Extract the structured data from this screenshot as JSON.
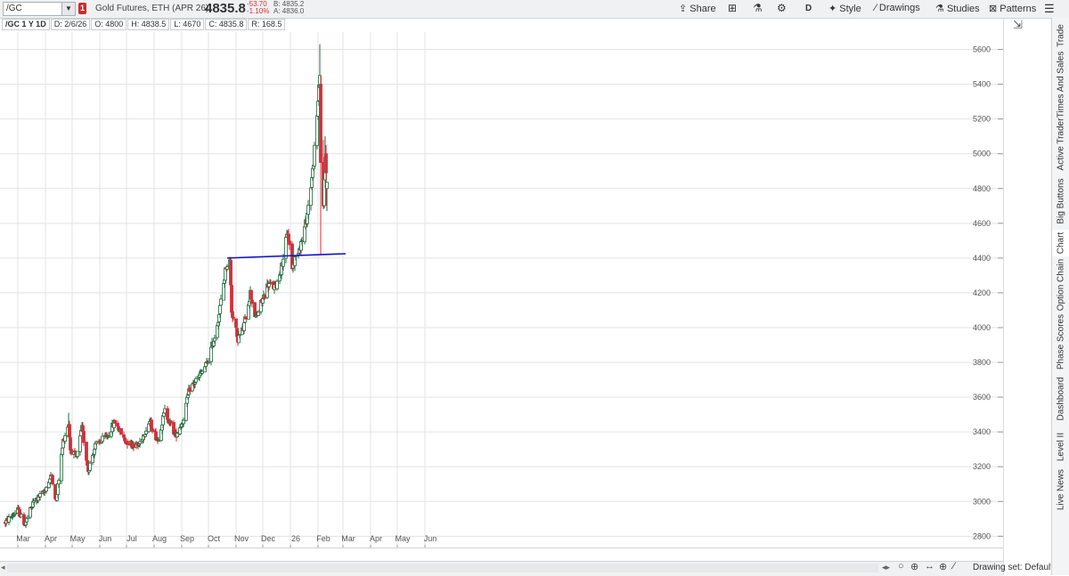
{
  "toolbar": {
    "symbol": "/GC",
    "flag_count": "1",
    "description": "Gold Futures, ETH (APR 26)",
    "last_price": "4835.8",
    "change": "-53.70",
    "change_pct": "-1.10%",
    "bid": "B: 4835.2",
    "ask": "A: 4836.0",
    "share_label": "Share",
    "aggregation": "D",
    "style_label": "Style",
    "drawings_label": "Drawings",
    "studies_label": "Studies",
    "patterns_label": "Patterns"
  },
  "infobar": {
    "title": "/GC 1 Y 1D",
    "date": "D: 2/6/26",
    "open": "O: 4800",
    "high": "H: 4838.5",
    "low": "L: 4670",
    "close": "C: 4835.8",
    "range": "R: 168.5"
  },
  "sidebar_tabs": [
    "Trade",
    "Times And Sales",
    "Active Trader",
    "Big Buttons",
    "Chart",
    "Option Chain",
    "Phase Scores",
    "Dashboard",
    "Level II",
    "Live News"
  ],
  "active_sidebar_tab": "Chart",
  "bottom": {
    "drawing_set": "Drawing set: Default"
  },
  "colors": {
    "up_candle": "#1e6b3c",
    "down_candle": "#d0303a",
    "trendline": "#1010cc",
    "grid": "#e3e3e3"
  },
  "chart_data": {
    "type": "candlestick",
    "symbol": "/GC",
    "period": "1 Y 1D",
    "y_ticks": [
      2800,
      3000,
      3200,
      3400,
      3600,
      3800,
      4000,
      4200,
      4400,
      4600,
      4800,
      5000,
      5200,
      5400,
      5600
    ],
    "ylim": [
      2730,
      5700
    ],
    "x_month_labels": [
      "Mar",
      "Apr",
      "May",
      "Jun",
      "Jul",
      "Aug",
      "Sep",
      "Oct",
      "Nov",
      "Dec",
      "26",
      "Feb",
      "Mar",
      "Apr",
      "May",
      "Jun"
    ],
    "anchors": [
      {
        "date": "2025-02-10",
        "close": 2880
      },
      {
        "date": "2025-02-24",
        "close": 2950
      },
      {
        "date": "2025-03-04",
        "close": 2870
      },
      {
        "date": "2025-03-14",
        "close": 3000
      },
      {
        "date": "2025-03-25",
        "close": 3050
      },
      {
        "date": "2025-04-03",
        "close": 3150
      },
      {
        "date": "2025-04-08",
        "close": 3000
      },
      {
        "date": "2025-04-16",
        "close": 3350
      },
      {
        "date": "2025-04-22",
        "close": 3450
      },
      {
        "date": "2025-04-24",
        "close": 3300
      },
      {
        "date": "2025-05-01",
        "close": 3250
      },
      {
        "date": "2025-05-07",
        "close": 3420
      },
      {
        "date": "2025-05-14",
        "close": 3180
      },
      {
        "date": "2025-05-22",
        "close": 3320
      },
      {
        "date": "2025-06-05",
        "close": 3380
      },
      {
        "date": "2025-06-13",
        "close": 3460
      },
      {
        "date": "2025-06-24",
        "close": 3350
      },
      {
        "date": "2025-07-09",
        "close": 3320
      },
      {
        "date": "2025-07-22",
        "close": 3460
      },
      {
        "date": "2025-07-31",
        "close": 3350
      },
      {
        "date": "2025-08-08",
        "close": 3520
      },
      {
        "date": "2025-08-20",
        "close": 3380
      },
      {
        "date": "2025-08-28",
        "close": 3460
      },
      {
        "date": "2025-09-05",
        "close": 3650
      },
      {
        "date": "2025-09-16",
        "close": 3720
      },
      {
        "date": "2025-09-25",
        "close": 3800
      },
      {
        "date": "2025-10-03",
        "close": 3950
      },
      {
        "date": "2025-10-08",
        "close": 4080
      },
      {
        "date": "2025-10-16",
        "close": 4360
      },
      {
        "date": "2025-10-20",
        "close": 4380
      },
      {
        "date": "2025-10-22",
        "close": 4100
      },
      {
        "date": "2025-10-27",
        "close": 3980
      },
      {
        "date": "2025-10-28",
        "close": 3930
      },
      {
        "date": "2025-11-04",
        "close": 3990
      },
      {
        "date": "2025-11-12",
        "close": 4200
      },
      {
        "date": "2025-11-18",
        "close": 4050
      },
      {
        "date": "2025-11-25",
        "close": 4150
      },
      {
        "date": "2025-12-02",
        "close": 4250
      },
      {
        "date": "2025-12-10",
        "close": 4230
      },
      {
        "date": "2025-12-17",
        "close": 4350
      },
      {
        "date": "2025-12-24",
        "close": 4550
      },
      {
        "date": "2025-12-29",
        "close": 4350
      },
      {
        "date": "2026-01-05",
        "close": 4450
      },
      {
        "date": "2026-01-09",
        "close": 4500
      },
      {
        "date": "2026-01-14",
        "close": 4620
      },
      {
        "date": "2026-01-21",
        "close": 4900
      },
      {
        "date": "2026-01-26",
        "close": 5200
      },
      {
        "date": "2026-01-29",
        "close": 5500
      },
      {
        "date": "2026-01-30",
        "close": 4950
      },
      {
        "date": "2026-02-02",
        "close": 4700
      },
      {
        "date": "2026-02-04",
        "close": 4980
      },
      {
        "date": "2026-02-05",
        "close": 4890
      },
      {
        "date": "2026-02-06",
        "close": 4835.8
      }
    ],
    "trendline": [
      {
        "date": "2025-10-17",
        "value": 4400
      },
      {
        "date": "2026-02-27",
        "value": 4425
      }
    ],
    "last_bar": {
      "date": "2026-02-06",
      "open": 4800,
      "high": 4838.5,
      "low": 4670,
      "close": 4835.8
    }
  }
}
